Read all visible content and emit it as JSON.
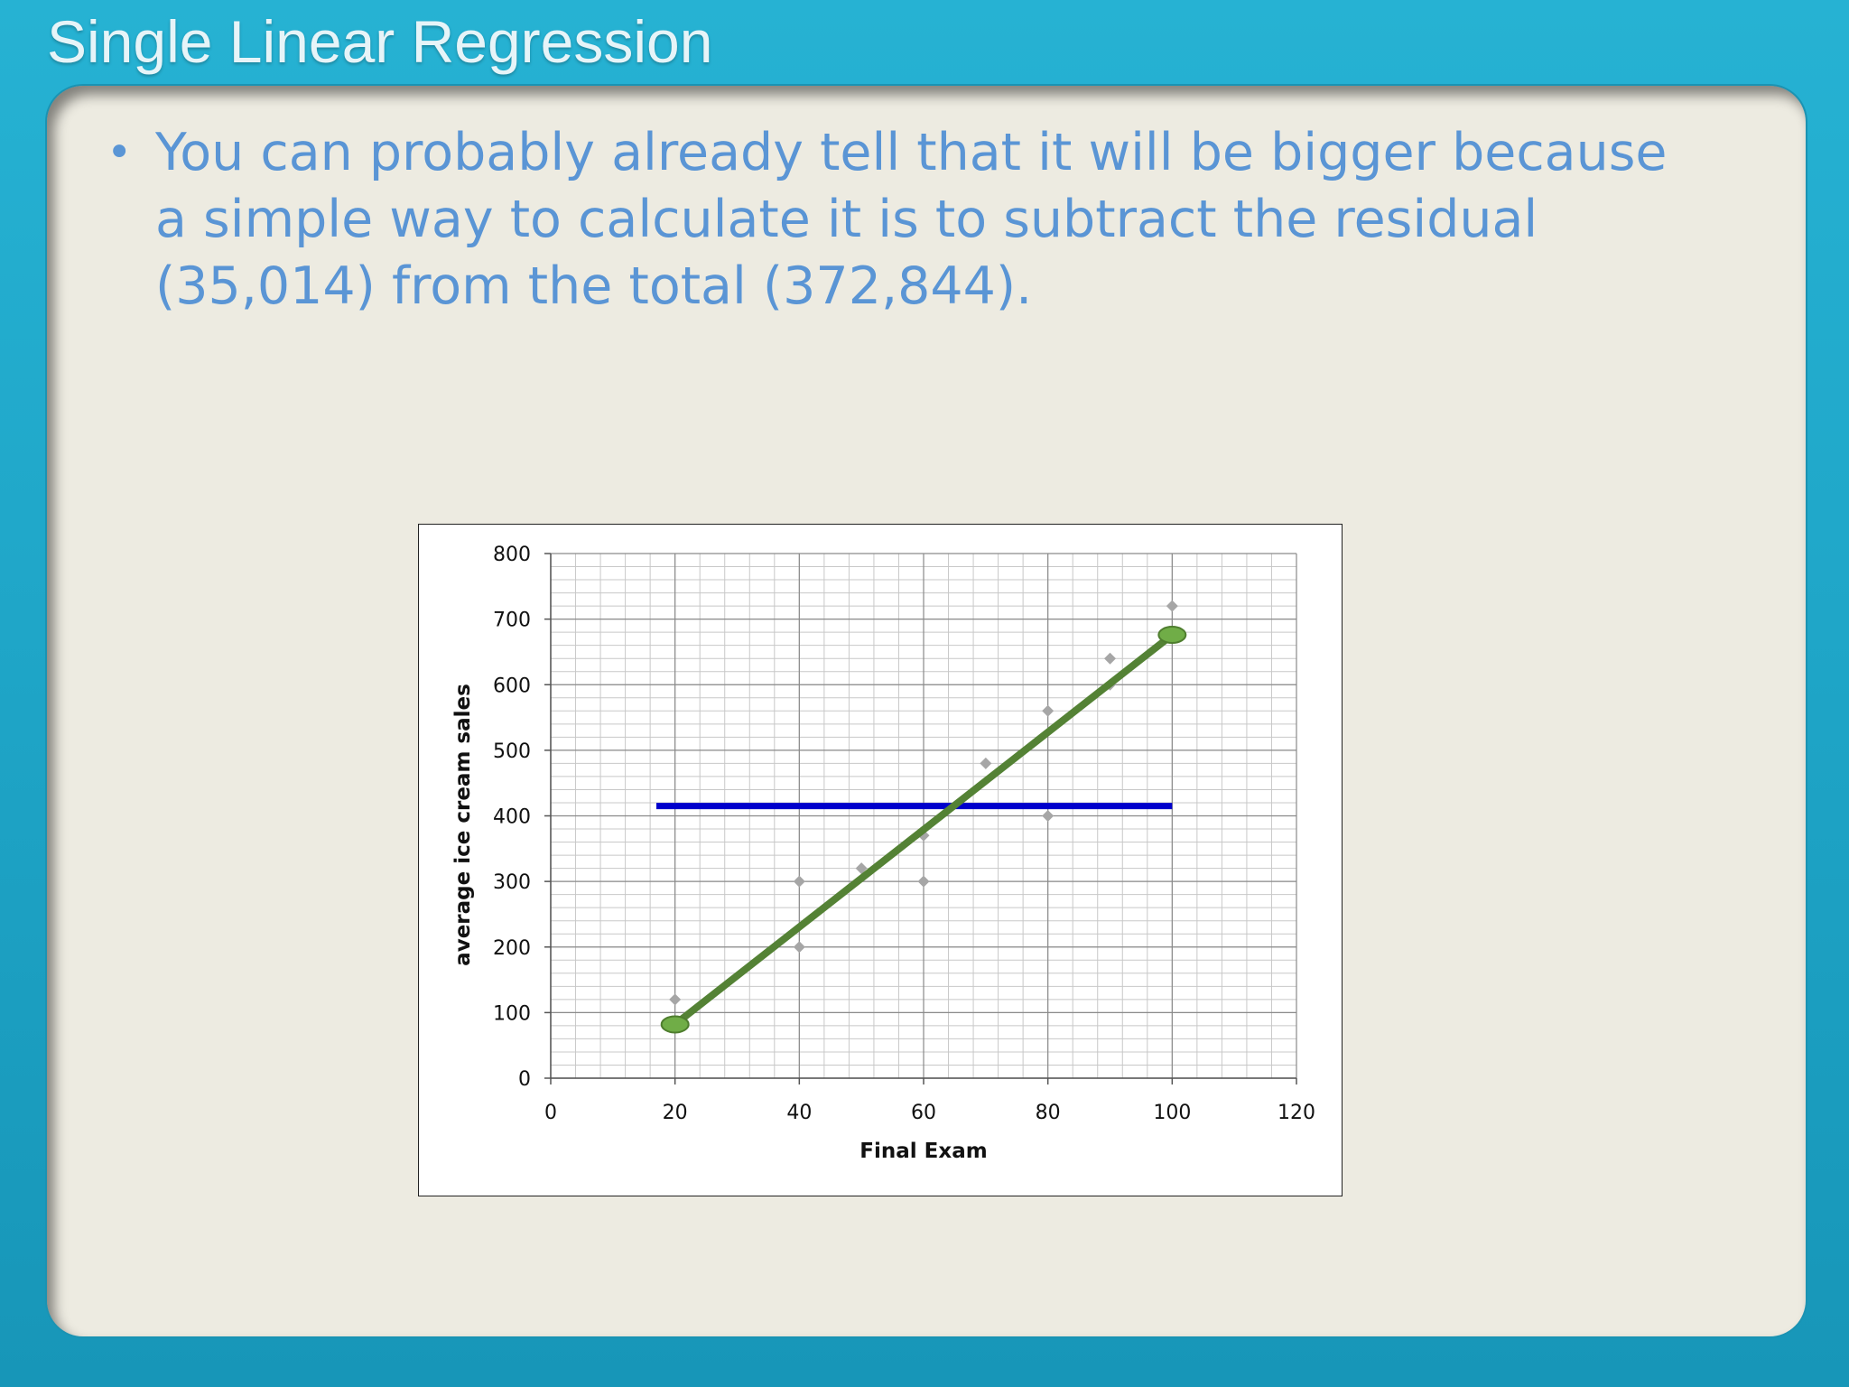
{
  "slide": {
    "title": "Single Linear Regression",
    "bullet": "You can probably already tell that it will be bigger because a simple way to calculate it is to subtract the residual (35,014) from the total (372,844)."
  },
  "colors": {
    "frame": "#1ca5c7",
    "panel": "#edebe1",
    "bullet_text": "#5a95d5",
    "regression_line": "#548235",
    "mean_line": "#0000cc",
    "points": "#a6a6a6",
    "endpoint_fill": "#70ad47"
  },
  "chart_data": {
    "type": "scatter",
    "title": "",
    "xlabel": "Final Exam",
    "ylabel": "average ice cream sales",
    "xlim": [
      0,
      120
    ],
    "ylim": [
      0,
      800
    ],
    "x_ticks": [
      0,
      20,
      40,
      60,
      80,
      100,
      120
    ],
    "y_ticks": [
      0,
      100,
      200,
      300,
      400,
      500,
      600,
      700,
      800
    ],
    "x_ticks_text": [
      "0",
      "20",
      "40",
      "60",
      "80",
      "100",
      "120"
    ],
    "y_ticks_text": [
      "0",
      "100",
      "200",
      "300",
      "400",
      "500",
      "600",
      "700",
      "800"
    ],
    "grid": "major and minor",
    "legend": "none",
    "points": [
      {
        "x": 20,
        "y": 120
      },
      {
        "x": 40,
        "y": 300
      },
      {
        "x": 40,
        "y": 200
      },
      {
        "x": 50,
        "y": 320
      },
      {
        "x": 60,
        "y": 370
      },
      {
        "x": 60,
        "y": 300
      },
      {
        "x": 70,
        "y": 480
      },
      {
        "x": 80,
        "y": 560
      },
      {
        "x": 80,
        "y": 400
      },
      {
        "x": 90,
        "y": 640
      },
      {
        "x": 90,
        "y": 600
      },
      {
        "x": 100,
        "y": 720
      }
    ],
    "regression_line": {
      "x": [
        20,
        100
      ],
      "y": [
        82,
        676
      ]
    },
    "mean_line": {
      "x": [
        17,
        100
      ],
      "y": [
        415,
        415
      ]
    }
  }
}
